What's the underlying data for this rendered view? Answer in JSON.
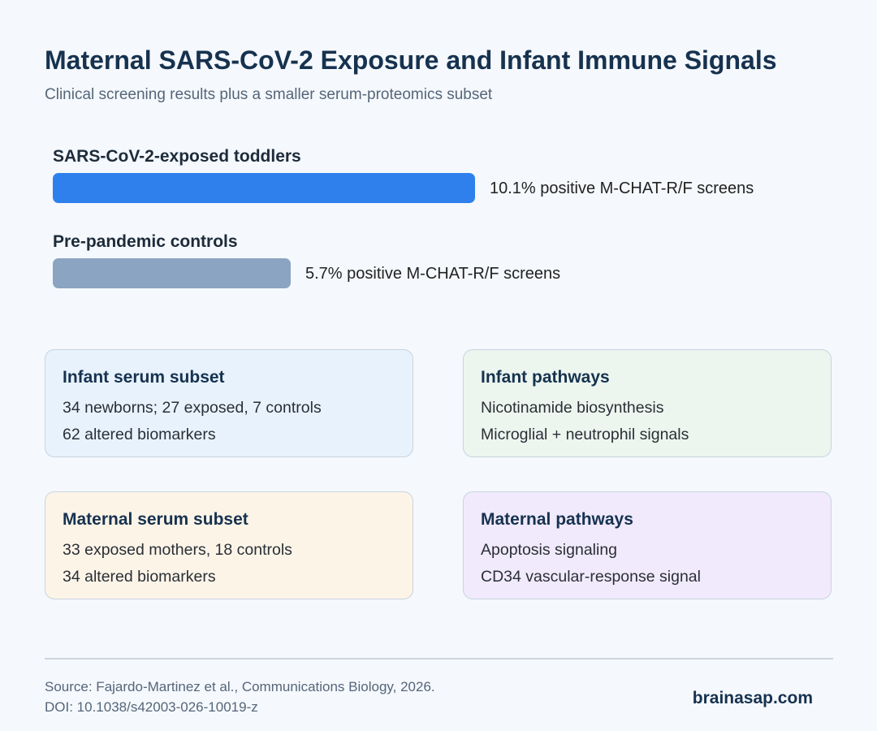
{
  "header": {
    "title": "Maternal SARS-CoV-2 Exposure and Infant Immune Signals",
    "subtitle": "Clinical screening results plus a smaller serum-proteomics subset"
  },
  "chart_data": {
    "type": "bar",
    "orientation": "horizontal",
    "title": "",
    "categories": [
      "SARS-CoV-2-exposed toddlers",
      "Pre-pandemic controls"
    ],
    "values": [
      10.1,
      5.7
    ],
    "value_labels": [
      "10.1% positive M-CHAT-R/F screens",
      "5.7% positive M-CHAT-R/F screens"
    ],
    "unit": "%",
    "colors": [
      "#2f80ed",
      "#8aa4c1"
    ],
    "xlim": [
      0,
      10.1
    ],
    "grid": false
  },
  "cards": [
    {
      "title": "Infant serum subset",
      "lines": [
        "34 newborns; 27 exposed, 7 controls",
        "62 altered biomarkers"
      ],
      "bg": "#e8f2fd"
    },
    {
      "title": "Infant pathways",
      "lines": [
        "Nicotinamide biosynthesis",
        "Microglial + neutrophil signals"
      ],
      "bg": "#ecf6ef"
    },
    {
      "title": "Maternal serum subset",
      "lines": [
        "33 exposed mothers, 18 controls",
        "34 altered biomarkers"
      ],
      "bg": "#fdf4e8"
    },
    {
      "title": "Maternal pathways",
      "lines": [
        "Apoptosis signaling",
        "CD34 vascular-response signal"
      ],
      "bg": "#f1eafc"
    }
  ],
  "footer": {
    "source": "Source: Fajardo-Martinez et al., Communications Biology, 2026.",
    "doi": "DOI: 10.1038/s42003-026-10019-z",
    "brand": "brainasap.com"
  }
}
